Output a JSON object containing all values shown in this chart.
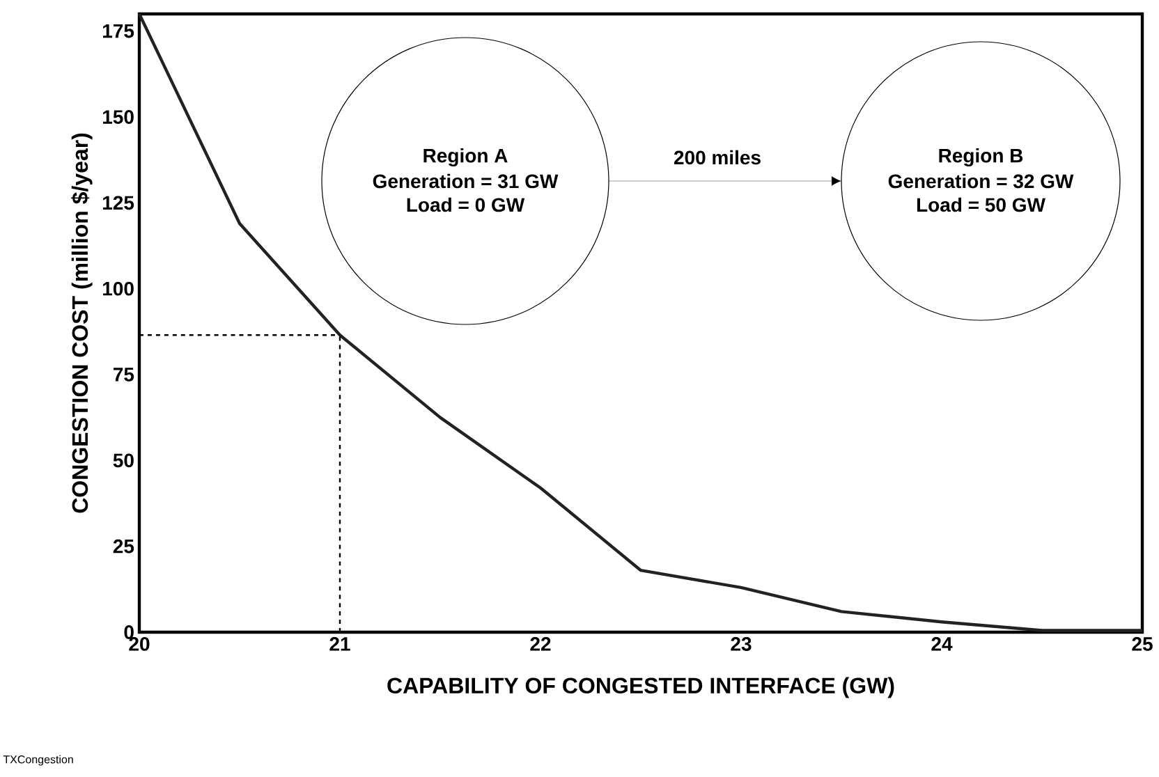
{
  "chart_data": {
    "type": "line",
    "xlabel": "CAPABILITY OF CONGESTED INTERFACE (GW)",
    "ylabel": "CONGESTION COST (million $/year)",
    "x": [
      20,
      20.5,
      21,
      21.5,
      22,
      22.5,
      23,
      23.5,
      24,
      24.5,
      25
    ],
    "series": [
      {
        "color": "#222222",
        "values": [
          180,
          119,
          86.5,
          62.5,
          42,
          18,
          13,
          6,
          3,
          0.5,
          0.5
        ]
      }
    ],
    "xlim": [
      20,
      25
    ],
    "xticks": [
      20,
      21,
      22,
      23,
      24,
      25
    ],
    "ylim": [
      0,
      180
    ],
    "yticks": [
      0,
      25,
      50,
      75,
      100,
      125,
      150,
      175
    ],
    "ref_lines": [
      {
        "axis": "x",
        "value": 21,
        "line_style": "dashed",
        "color": "#000000"
      },
      {
        "axis": "y",
        "value": 86.5,
        "line_style": "dashed",
        "color": "#000000"
      }
    ],
    "annotations": [
      "Region A",
      "Generation = 31 GW",
      "Load = 0 GW",
      "200 miles",
      "Region B",
      "Generation = 32 GW",
      "Load = 50 GW",
      "TXCongestion"
    ],
    "marker": "none",
    "line_style": "solid"
  }
}
